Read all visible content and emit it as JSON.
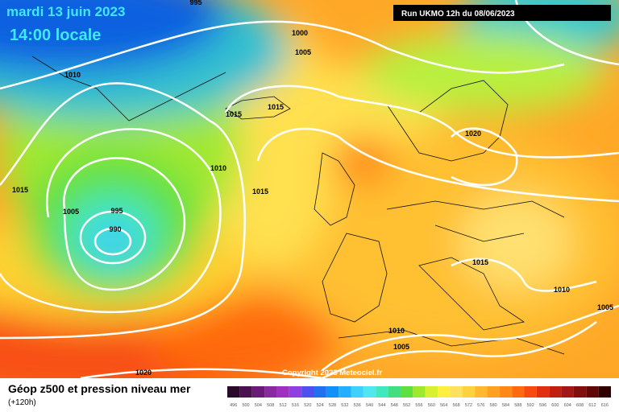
{
  "header": {
    "date": "mardi 13 juin 2023",
    "time": "14:00 locale",
    "run": "Run UKMO 12h du 08/06/2023"
  },
  "isobar_labels": [
    995,
    1000,
    1005,
    1010,
    1015,
    1015,
    1020,
    1010,
    1015,
    1015,
    1005,
    995,
    990,
    1015,
    1010,
    1005,
    1010,
    1005,
    1020
  ],
  "copyright": "Copyright 2023 Meteociel.fr",
  "legend": {
    "title": "Géop z500 et pression niveau mer",
    "subtitle": "(+120h)",
    "ticks": [
      496,
      500,
      504,
      508,
      512,
      516,
      520,
      524,
      528,
      532,
      536,
      540,
      544,
      548,
      552,
      556,
      560,
      564,
      568,
      572,
      576,
      580,
      584,
      588,
      592,
      596,
      600,
      604,
      608,
      612,
      616
    ],
    "colors": [
      "#2a0a2a",
      "#4b1050",
      "#6a1a78",
      "#8a2aa0",
      "#a030c0",
      "#9040e0",
      "#5050f0",
      "#2070f0",
      "#1090f8",
      "#20b0ff",
      "#40d0ff",
      "#50e8f0",
      "#40e8c0",
      "#40e080",
      "#60e040",
      "#a0e830",
      "#d8f030",
      "#fff040",
      "#ffe060",
      "#ffd040",
      "#ffb830",
      "#ffa020",
      "#ff8818",
      "#ff6a10",
      "#f84a10",
      "#e03010",
      "#c02010",
      "#a01818",
      "#801010",
      "#600808",
      "#300000"
    ]
  }
}
